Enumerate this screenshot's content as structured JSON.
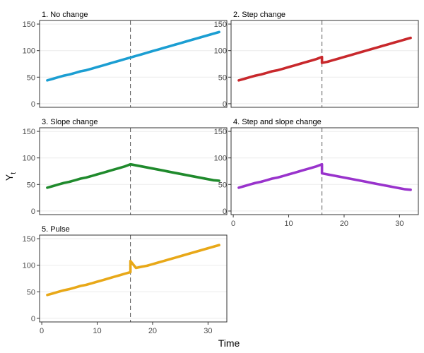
{
  "figure": {
    "ylabel": "Y",
    "ylabel_sub": "t",
    "xlabel": "Time"
  },
  "chart_data": [
    {
      "type": "line",
      "title": "1. No change",
      "xlim": [
        1,
        32
      ],
      "ylim": [
        0,
        150
      ],
      "yticks": [
        0,
        50,
        100,
        150
      ],
      "xticks": [
        0,
        10,
        20,
        30
      ],
      "vline": 16,
      "color": "#1b9ed2",
      "grid": "horizontal",
      "x": [
        1,
        2,
        3,
        4,
        5,
        6,
        7,
        8,
        9,
        10,
        11,
        12,
        13,
        14,
        15,
        16,
        17,
        18,
        19,
        20,
        21,
        22,
        23,
        24,
        25,
        26,
        27,
        28,
        29,
        30,
        31,
        32
      ],
      "y": [
        44,
        47,
        50,
        53,
        55,
        58,
        61,
        63,
        66,
        69,
        72,
        75,
        78,
        81,
        84,
        87,
        90,
        93,
        96,
        99,
        102,
        105,
        108,
        111,
        114,
        117,
        120,
        123,
        126,
        129,
        132,
        135
      ]
    },
    {
      "type": "line",
      "title": "2. Step change",
      "xlim": [
        1,
        32
      ],
      "ylim": [
        0,
        150
      ],
      "yticks": [
        0,
        50,
        100,
        150
      ],
      "xticks": [
        0,
        10,
        20,
        30
      ],
      "vline": 16,
      "color": "#c8282c",
      "grid": "horizontal",
      "x": [
        1,
        2,
        3,
        4,
        5,
        6,
        7,
        8,
        9,
        10,
        11,
        12,
        13,
        14,
        15,
        16,
        16,
        17,
        18,
        19,
        20,
        21,
        22,
        23,
        24,
        25,
        26,
        27,
        28,
        29,
        30,
        31,
        32
      ],
      "y": [
        44,
        47,
        50,
        53,
        55,
        58,
        61,
        63,
        66,
        69,
        72,
        75,
        78,
        81,
        84,
        88,
        77,
        79,
        82,
        85,
        88,
        91,
        94,
        97,
        100,
        103,
        106,
        109,
        112,
        115,
        118,
        121,
        124
      ]
    },
    {
      "type": "line",
      "title": "3. Slope change",
      "xlim": [
        1,
        32
      ],
      "ylim": [
        0,
        150
      ],
      "yticks": [
        0,
        50,
        100,
        150
      ],
      "xticks": [
        0,
        10,
        20,
        30
      ],
      "vline": 16,
      "color": "#1f8a2c",
      "grid": "horizontal",
      "x": [
        1,
        2,
        3,
        4,
        5,
        6,
        7,
        8,
        9,
        10,
        11,
        12,
        13,
        14,
        15,
        16,
        17,
        18,
        19,
        20,
        21,
        22,
        23,
        24,
        25,
        26,
        27,
        28,
        29,
        30,
        31,
        32
      ],
      "y": [
        44,
        47,
        50,
        53,
        55,
        58,
        61,
        63,
        66,
        69,
        72,
        75,
        78,
        81,
        84,
        88,
        86,
        84,
        82,
        80,
        78,
        76,
        74,
        72,
        70,
        68,
        66,
        64,
        62,
        60,
        58,
        57
      ]
    },
    {
      "type": "line",
      "title": "4. Step and slope change",
      "xlim": [
        1,
        32
      ],
      "ylim": [
        0,
        150
      ],
      "yticks": [
        0,
        50,
        100,
        150
      ],
      "xticks": [
        0,
        10,
        20,
        30
      ],
      "vline": 16,
      "color": "#9933cc",
      "grid": "horizontal",
      "x": [
        1,
        2,
        3,
        4,
        5,
        6,
        7,
        8,
        9,
        10,
        11,
        12,
        13,
        14,
        15,
        16,
        16,
        17,
        18,
        19,
        20,
        21,
        22,
        23,
        24,
        25,
        26,
        27,
        28,
        29,
        30,
        31,
        32
      ],
      "y": [
        44,
        47,
        50,
        53,
        55,
        58,
        61,
        63,
        66,
        69,
        72,
        75,
        78,
        81,
        84,
        88,
        71,
        69,
        67,
        65,
        63,
        61,
        59,
        57,
        55,
        53,
        51,
        49,
        47,
        45,
        43,
        41,
        40
      ]
    },
    {
      "type": "line",
      "title": "5. Pulse",
      "xlim": [
        1,
        32
      ],
      "ylim": [
        0,
        150
      ],
      "yticks": [
        0,
        50,
        100,
        150
      ],
      "xticks": [
        0,
        10,
        20,
        30
      ],
      "vline": 16,
      "color": "#e8a818",
      "grid": "horizontal",
      "x": [
        1,
        2,
        3,
        4,
        5,
        6,
        7,
        8,
        9,
        10,
        11,
        12,
        13,
        14,
        15,
        16,
        16,
        17,
        18,
        19,
        20,
        21,
        22,
        23,
        24,
        25,
        26,
        27,
        28,
        29,
        30,
        31,
        32
      ],
      "y": [
        44,
        47,
        50,
        53,
        55,
        58,
        61,
        63,
        66,
        69,
        72,
        75,
        78,
        81,
        84,
        87,
        108,
        95,
        97,
        99,
        102,
        105,
        108,
        111,
        114,
        117,
        120,
        123,
        126,
        129,
        132,
        135,
        138
      ]
    }
  ]
}
